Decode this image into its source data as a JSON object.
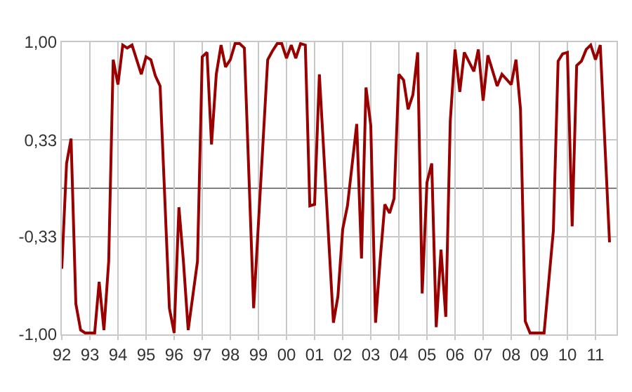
{
  "chart_data": {
    "type": "line",
    "x": [
      1992.0,
      1992.17,
      1992.33,
      1992.5,
      1992.67,
      1992.83,
      1993.17,
      1993.33,
      1993.5,
      1993.67,
      1993.83,
      1994.0,
      1994.17,
      1994.33,
      1994.5,
      1994.83,
      1995.0,
      1995.17,
      1995.33,
      1995.5,
      1995.83,
      1996.0,
      1996.17,
      1996.33,
      1996.5,
      1996.83,
      1997.0,
      1997.17,
      1997.33,
      1997.5,
      1997.67,
      1997.83,
      1998.0,
      1998.17,
      1998.33,
      1998.5,
      1998.83,
      1999.33,
      1999.5,
      1999.67,
      1999.83,
      2000.0,
      2000.17,
      2000.33,
      2000.5,
      2000.67,
      2000.83,
      2001.0,
      2001.17,
      2001.67,
      2001.83,
      2002.0,
      2002.17,
      2002.5,
      2002.67,
      2002.83,
      2003.0,
      2003.17,
      2003.33,
      2003.5,
      2003.67,
      2003.83,
      2004.0,
      2004.17,
      2004.33,
      2004.5,
      2004.67,
      2004.83,
      2005.0,
      2005.17,
      2005.33,
      2005.5,
      2005.67,
      2005.83,
      2006.0,
      2006.17,
      2006.33,
      2006.67,
      2006.83,
      2007.0,
      2007.17,
      2007.5,
      2007.67,
      2008.0,
      2008.17,
      2008.33,
      2008.5,
      2008.67,
      2009.17,
      2009.5,
      2009.67,
      2009.83,
      2010.0,
      2010.17,
      2010.33,
      2010.5,
      2010.67,
      2010.83,
      2011.0,
      2011.17,
      2011.5
    ],
    "series": [
      {
        "color": "#990000",
        "values": [
          -0.55,
          0.17,
          0.34,
          -0.79,
          -0.97,
          -0.99,
          -0.99,
          -0.64,
          -0.97,
          -0.5,
          0.88,
          0.71,
          0.98,
          0.96,
          0.98,
          0.78,
          0.9,
          0.88,
          0.77,
          0.7,
          -0.82,
          -0.99,
          -0.13,
          -0.5,
          -0.97,
          -0.5,
          0.9,
          0.93,
          0.3,
          0.78,
          0.98,
          0.83,
          0.88,
          0.99,
          0.99,
          0.96,
          -0.82,
          0.88,
          0.94,
          0.99,
          0.99,
          0.89,
          0.98,
          0.89,
          0.99,
          0.98,
          -0.12,
          -0.11,
          0.78,
          -0.92,
          -0.74,
          -0.28,
          -0.12,
          0.44,
          -0.48,
          0.69,
          0.43,
          -0.92,
          -0.5,
          -0.11,
          -0.17,
          -0.07,
          0.78,
          0.74,
          0.54,
          0.64,
          0.93,
          -0.72,
          0.04,
          0.17,
          -0.95,
          -0.42,
          -0.88,
          0.46,
          0.95,
          0.66,
          0.93,
          0.8,
          0.95,
          0.6,
          0.91,
          0.7,
          0.78,
          0.71,
          0.88,
          0.54,
          -0.91,
          -0.99,
          -0.99,
          -0.29,
          0.87,
          0.92,
          0.93,
          -0.26,
          0.84,
          0.87,
          0.95,
          0.98,
          0.88,
          0.98,
          -0.37
        ]
      }
    ],
    "xlim": [
      1992,
      2011.75
    ],
    "xticks": [
      {
        "value": 1992,
        "label": "92"
      },
      {
        "value": 1993,
        "label": "93"
      },
      {
        "value": 1994,
        "label": "94"
      },
      {
        "value": 1995,
        "label": "95"
      },
      {
        "value": 1996,
        "label": "96"
      },
      {
        "value": 1997,
        "label": "97"
      },
      {
        "value": 1998,
        "label": "98"
      },
      {
        "value": 1999,
        "label": "99"
      },
      {
        "value": 2000,
        "label": "00"
      },
      {
        "value": 2001,
        "label": "01"
      },
      {
        "value": 2002,
        "label": "02"
      },
      {
        "value": 2003,
        "label": "03"
      },
      {
        "value": 2004,
        "label": "04"
      },
      {
        "value": 2005,
        "label": "05"
      },
      {
        "value": 2006,
        "label": "06"
      },
      {
        "value": 2007,
        "label": "07"
      },
      {
        "value": 2008,
        "label": "08"
      },
      {
        "value": 2009,
        "label": "09"
      },
      {
        "value": 2010,
        "label": "10"
      },
      {
        "value": 2011,
        "label": "11"
      }
    ],
    "ylim": [
      -1,
      1
    ],
    "yticks": [
      {
        "value": 1,
        "label": "1,00"
      },
      {
        "value": 0.33,
        "label": "0,33"
      },
      {
        "value": -0.33,
        "label": "-0,33"
      },
      {
        "value": -1,
        "label": "-1,00"
      }
    ],
    "ref_lines": [
      {
        "axis": "y",
        "value": 0,
        "color": "#808080"
      }
    ],
    "grid": true,
    "marker": "none",
    "line_style": "solid"
  }
}
